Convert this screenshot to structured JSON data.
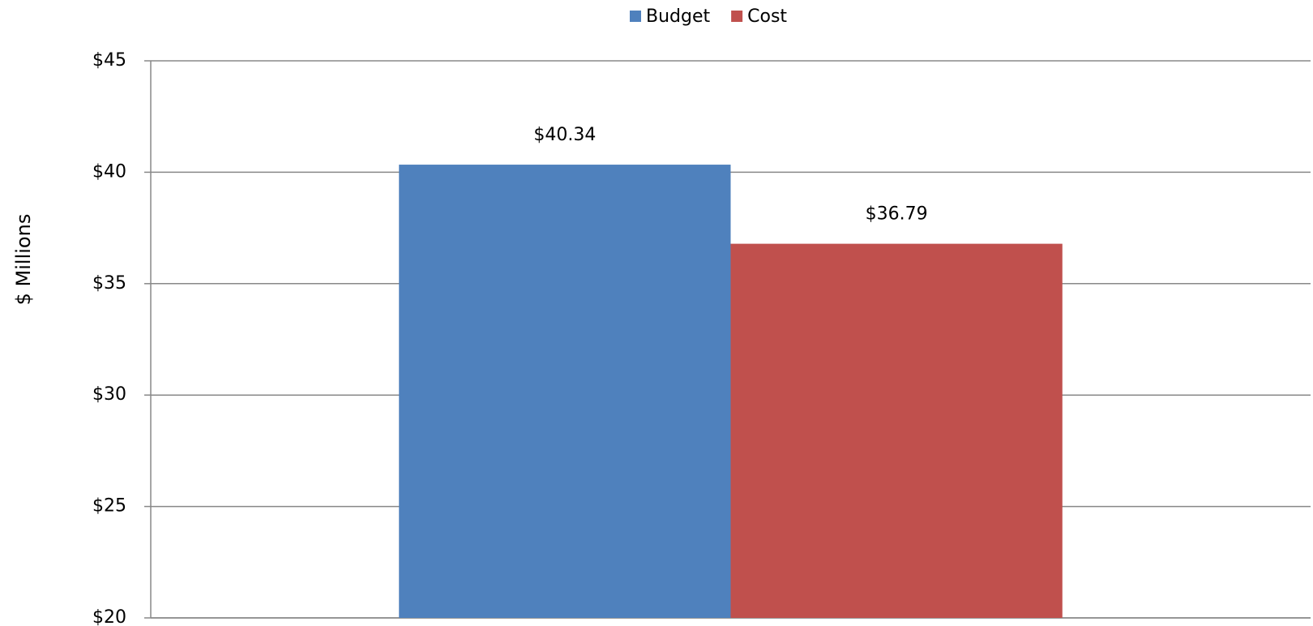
{
  "chart_data": {
    "type": "bar",
    "y_label": "$ Millions",
    "categories": [
      null
    ],
    "series": [
      {
        "name": "Budget",
        "color": "#4f81bd",
        "values": [
          40.34
        ],
        "value_labels": [
          "$40.34"
        ]
      },
      {
        "name": "Cost",
        "color": "#c0504d",
        "values": [
          36.79
        ],
        "value_labels": [
          "$36.79"
        ]
      }
    ],
    "ylim": [
      20,
      45
    ],
    "yticks": [
      {
        "value": 20,
        "label": "$20"
      },
      {
        "value": 25,
        "label": "$25"
      },
      {
        "value": 30,
        "label": "$30"
      },
      {
        "value": 35,
        "label": "$35"
      },
      {
        "value": 40,
        "label": "$40"
      },
      {
        "value": 45,
        "label": "$45"
      }
    ],
    "grid": true,
    "legend": "top"
  }
}
